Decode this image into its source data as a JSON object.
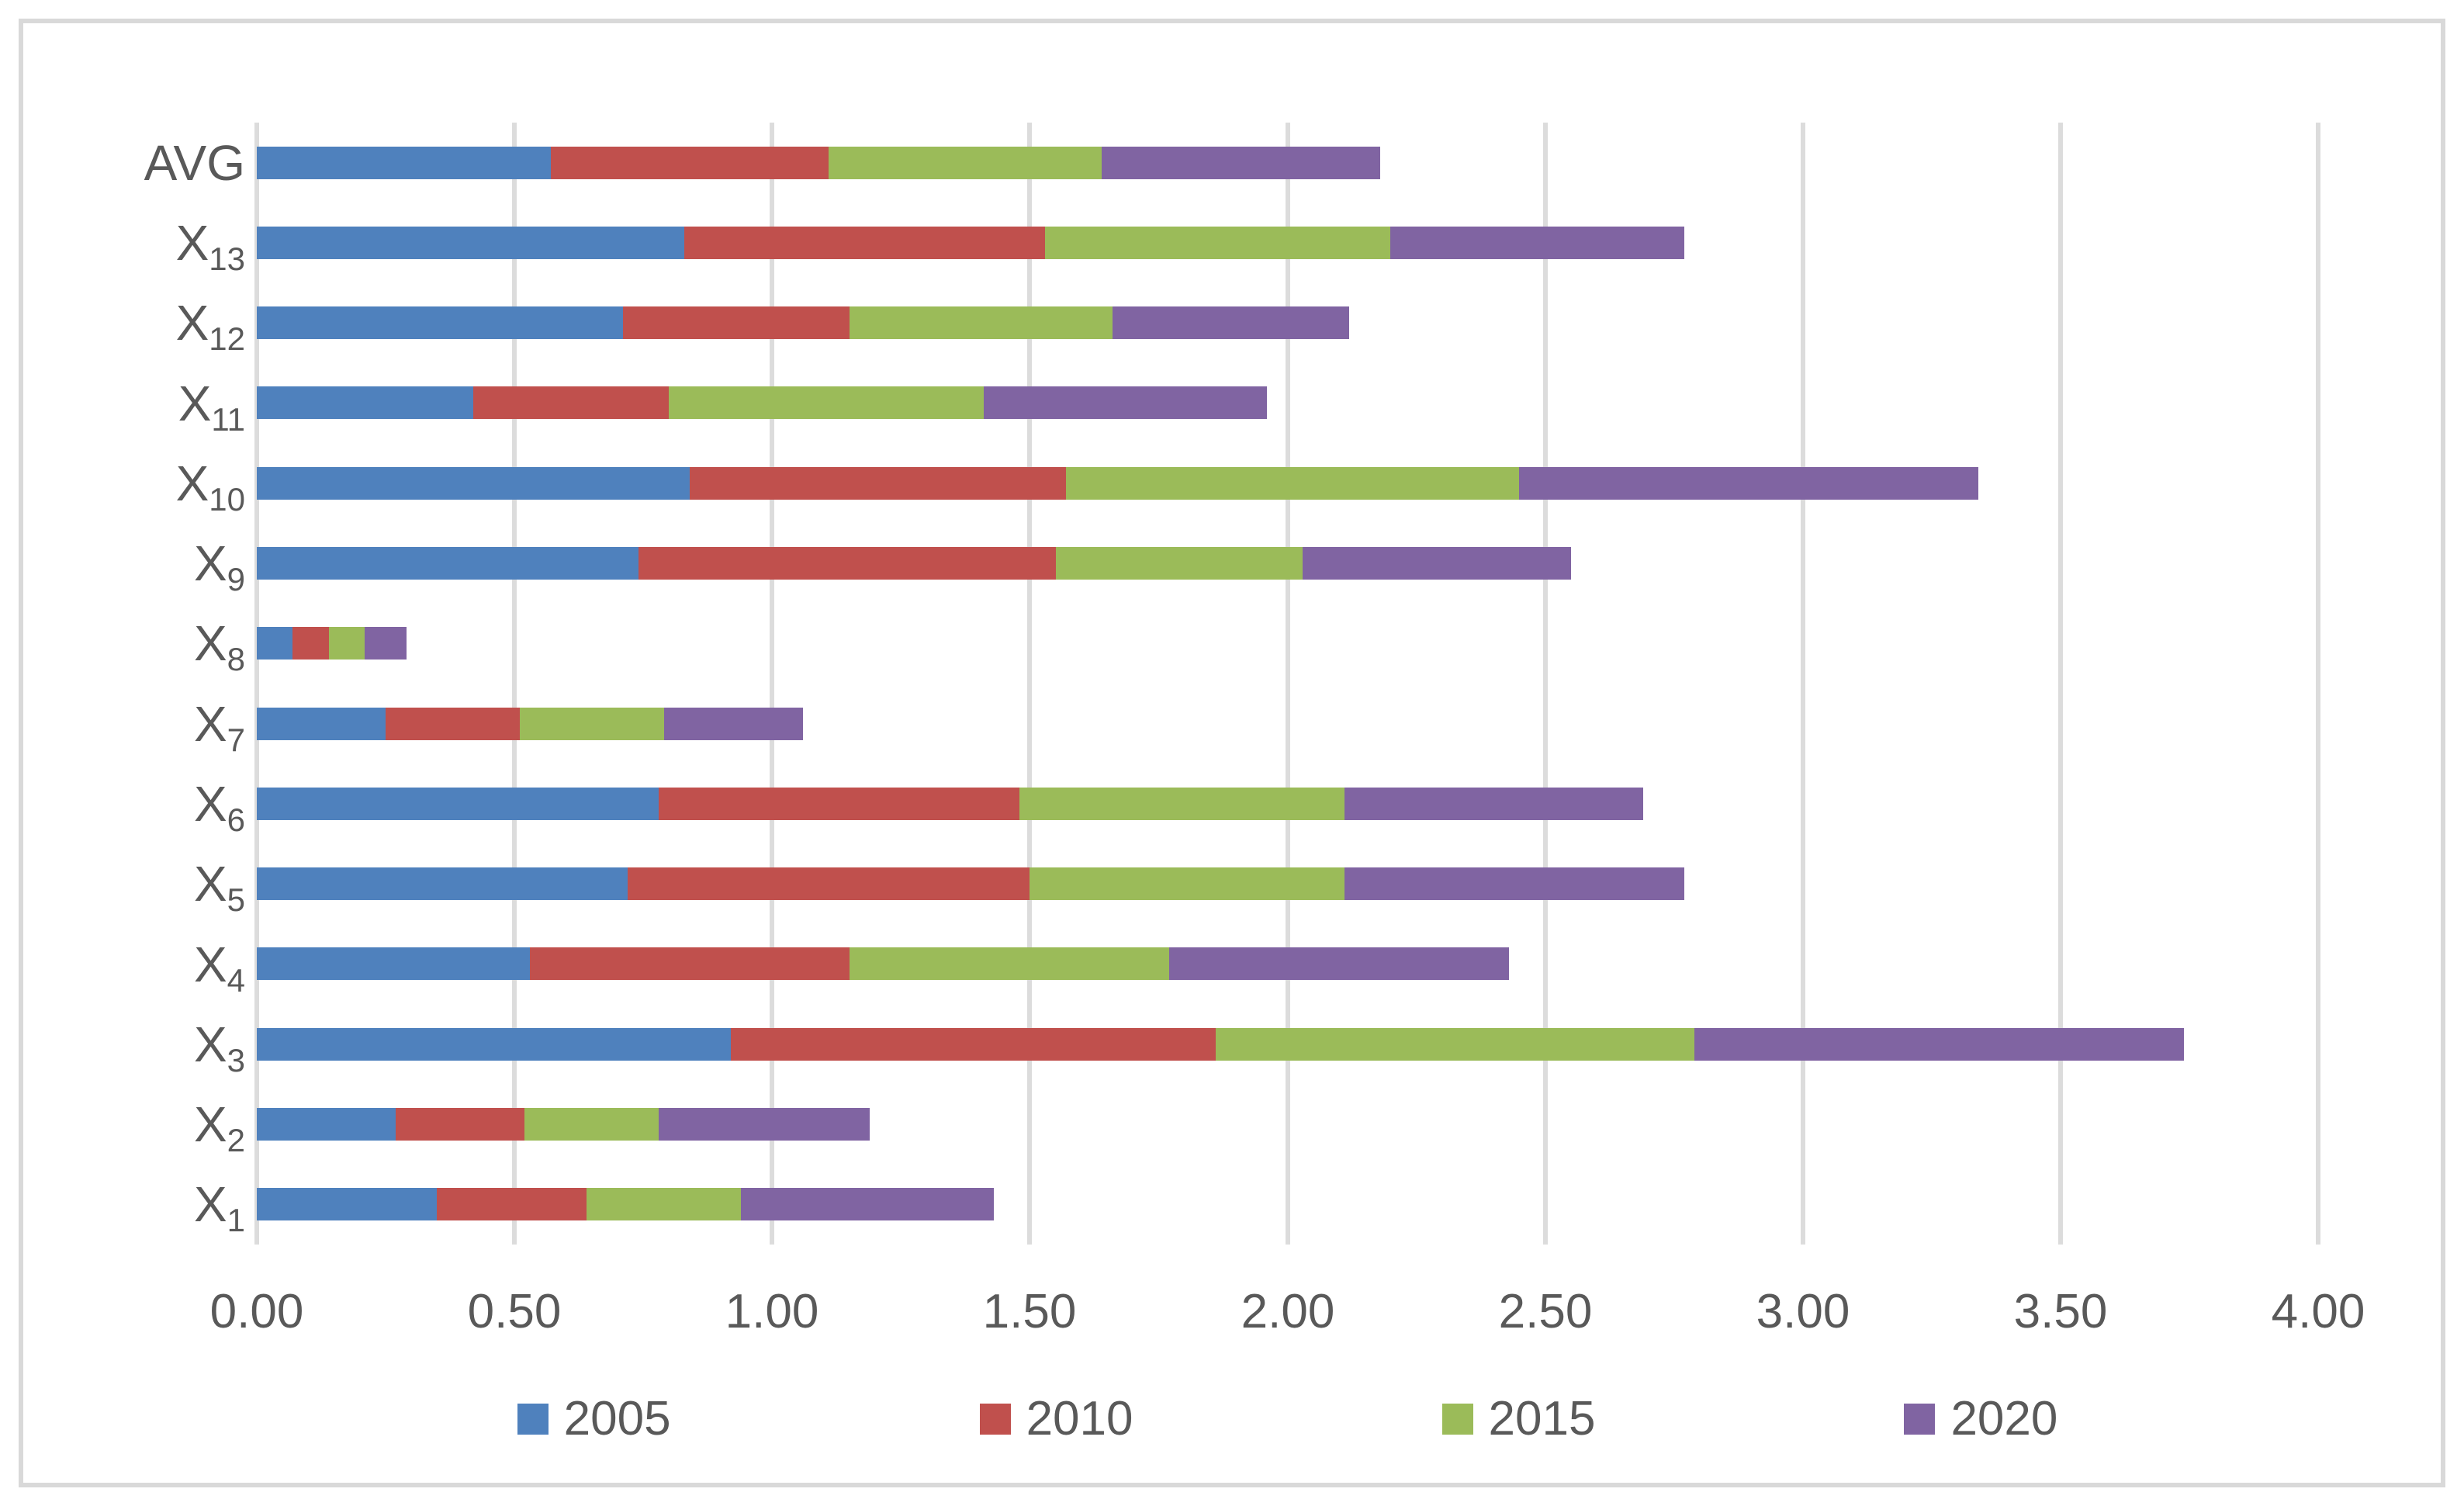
{
  "chart_data": {
    "type": "bar",
    "orientation": "horizontal",
    "stacked": true,
    "title": "",
    "xlabel": "",
    "ylabel": "",
    "grid": true,
    "legend_position": "bottom",
    "categories": [
      {
        "base": "AVG",
        "sub": ""
      },
      {
        "base": "X",
        "sub": "13"
      },
      {
        "base": "X",
        "sub": "12"
      },
      {
        "base": "X",
        "sub": "11"
      },
      {
        "base": "X",
        "sub": "10"
      },
      {
        "base": "X",
        "sub": "9"
      },
      {
        "base": "X",
        "sub": "8"
      },
      {
        "base": "X",
        "sub": "7"
      },
      {
        "base": "X",
        "sub": "6"
      },
      {
        "base": "X",
        "sub": "5"
      },
      {
        "base": "X",
        "sub": "4"
      },
      {
        "base": "X",
        "sub": "3"
      },
      {
        "base": "X",
        "sub": "2"
      },
      {
        "base": "X",
        "sub": "1"
      }
    ],
    "series": [
      {
        "name": "2005",
        "color": "#4F81BD",
        "values": [
          0.57,
          0.83,
          0.71,
          0.42,
          0.84,
          0.74,
          0.07,
          0.25,
          0.78,
          0.72,
          0.53,
          0.92,
          0.27,
          0.35
        ]
      },
      {
        "name": "2010",
        "color": "#C0504D",
        "values": [
          0.54,
          0.7,
          0.44,
          0.38,
          0.73,
          0.81,
          0.07,
          0.26,
          0.7,
          0.78,
          0.62,
          0.94,
          0.25,
          0.29
        ]
      },
      {
        "name": "2015",
        "color": "#9BBB59",
        "values": [
          0.53,
          0.67,
          0.51,
          0.61,
          0.88,
          0.48,
          0.07,
          0.28,
          0.63,
          0.61,
          0.62,
          0.93,
          0.26,
          0.3
        ]
      },
      {
        "name": "2020",
        "color": "#8064A2",
        "values": [
          0.54,
          0.57,
          0.46,
          0.55,
          0.89,
          0.52,
          0.08,
          0.27,
          0.58,
          0.66,
          0.66,
          0.95,
          0.41,
          0.49
        ]
      }
    ],
    "x_axis": {
      "min": 0.0,
      "max": 4.0,
      "step": 0.5,
      "tick_labels": [
        "0.00",
        "0.50",
        "1.00",
        "1.50",
        "2.00",
        "2.50",
        "3.00",
        "3.50",
        "4.00"
      ]
    },
    "totals": [
      2.18,
      2.77,
      2.12,
      1.96,
      3.34,
      2.55,
      0.29,
      1.06,
      2.69,
      2.77,
      2.43,
      3.74,
      1.19,
      1.43
    ]
  },
  "colors": {
    "gridline": "#DCDCDC",
    "figure_border": "#D9D9D9",
    "text": "#595959",
    "background": "#FFFFFF"
  }
}
